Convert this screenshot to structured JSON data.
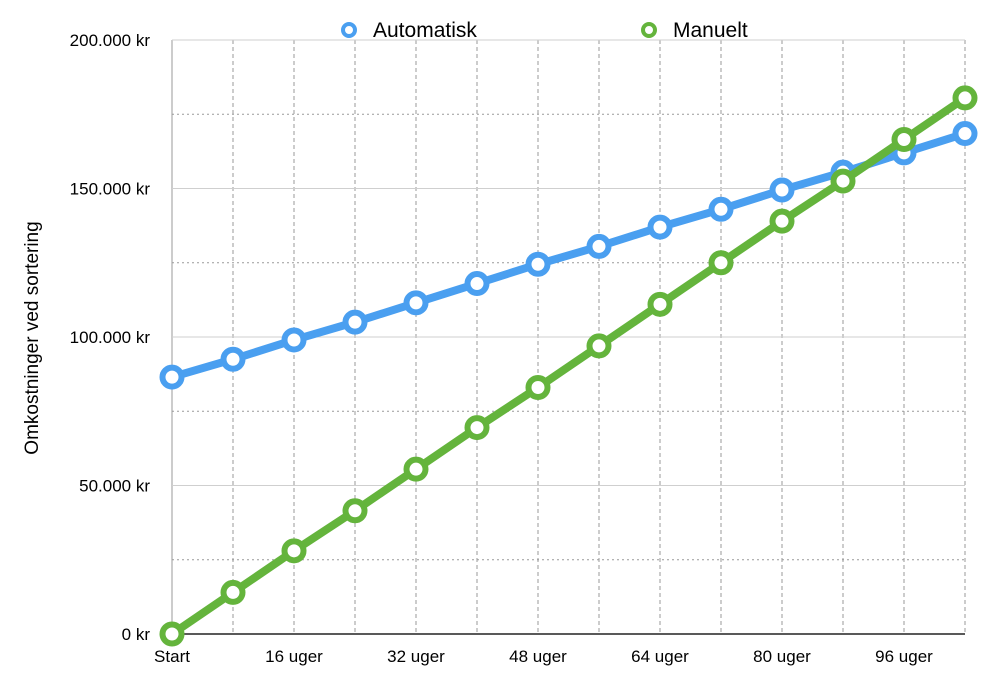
{
  "chart_data": {
    "type": "line",
    "title": "",
    "xlabel": "",
    "ylabel": "Omkostninger ved sortering",
    "x": [
      0,
      8,
      16,
      24,
      32,
      40,
      48,
      56,
      64,
      72,
      80,
      88,
      96,
      104
    ],
    "x_tick_labels": [
      "Start",
      "16 uger",
      "32 uger",
      "48 uger",
      "64 uger",
      "80 uger",
      "96 uger"
    ],
    "y_tick_labels": [
      "0 kr",
      "50.000 kr",
      "100.000 kr",
      "150.000 kr",
      "200.000 kr"
    ],
    "ylim": [
      0,
      200000
    ],
    "grid": true,
    "legend_position": "top-center",
    "series": [
      {
        "name": "Automatisk",
        "color": "#4a9ff0",
        "values": [
          86500,
          92500,
          99000,
          105000,
          111500,
          118000,
          124500,
          130500,
          137000,
          143000,
          149500,
          155500,
          162000,
          168500
        ]
      },
      {
        "name": "Manuelt",
        "color": "#64b43c",
        "values": [
          0,
          14000,
          28000,
          41500,
          55500,
          69500,
          83000,
          97000,
          111000,
          125000,
          139000,
          152500,
          166500,
          180500
        ]
      }
    ]
  }
}
